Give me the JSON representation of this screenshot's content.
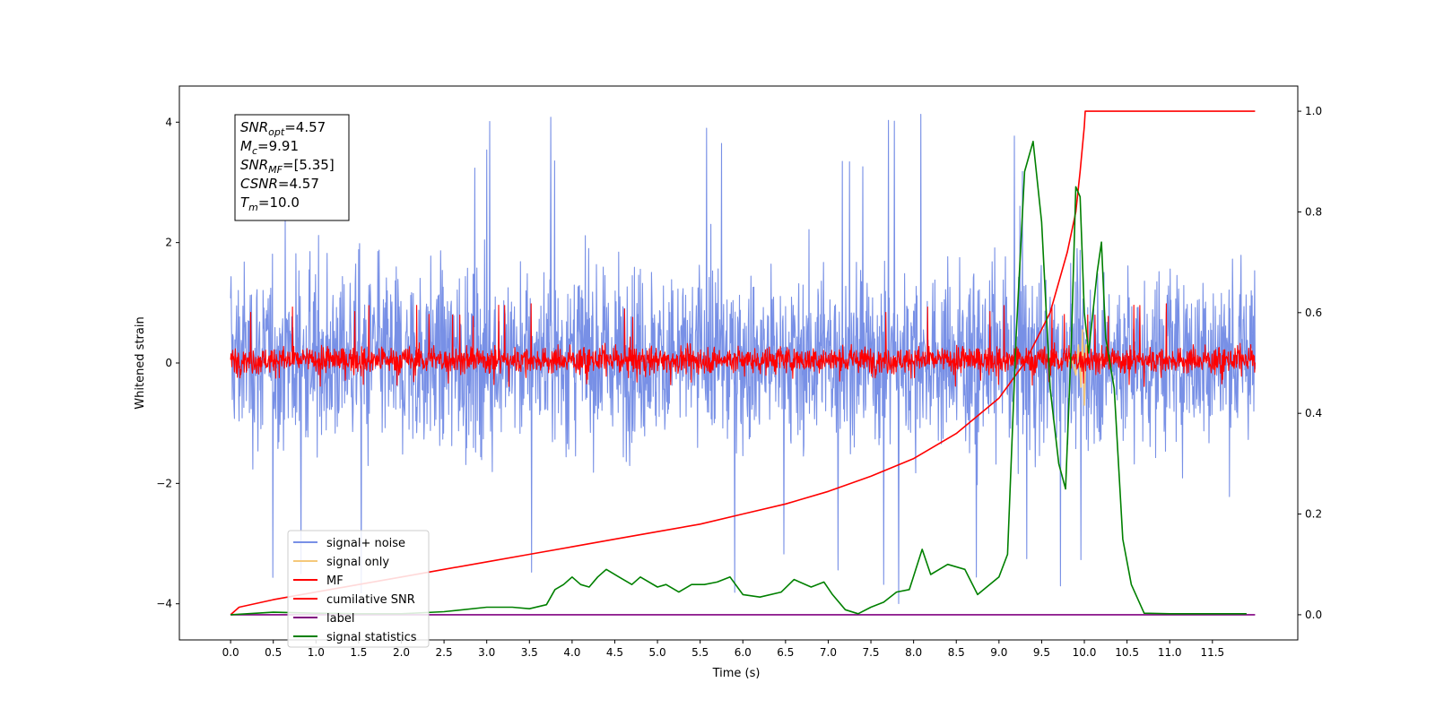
{
  "chart_data": {
    "type": "line",
    "xlabel": "Time (s)",
    "ylabel_left": "Whitened strain",
    "ylabel_right": "",
    "xlim": [
      -0.6,
      12.5
    ],
    "ylim_left": [
      -4.6,
      4.6
    ],
    "ylim_right": [
      -0.05,
      1.05
    ],
    "x_ticks": [
      "0.0",
      "0.5",
      "1.0",
      "1.5",
      "2.0",
      "2.5",
      "3.0",
      "3.5",
      "4.0",
      "4.5",
      "5.0",
      "5.5",
      "6.0",
      "6.5",
      "7.0",
      "7.5",
      "8.0",
      "8.5",
      "9.0",
      "9.5",
      "10.0",
      "10.5",
      "11.0",
      "11.5"
    ],
    "y_ticks_left": [
      "4",
      "2",
      "0",
      "−2",
      "−4"
    ],
    "y_ticks_right": [
      "1.0",
      "0.8",
      "0.6",
      "0.4",
      "0.2",
      "0.0"
    ],
    "grid": false,
    "legend_placement": "lower-left",
    "legend": [
      {
        "label": "signal+ noise",
        "color": "#7890e6"
      },
      {
        "label": "signal only",
        "color": "#f5c87a"
      },
      {
        "label": "MF",
        "color": "#ff0000"
      },
      {
        "label": "cumilative SNR",
        "color": "#ff0000"
      },
      {
        "label": "label",
        "color": "#800080"
      },
      {
        "label": "signal statistics",
        "color": "#008000"
      }
    ],
    "annotation_box": [
      {
        "sym": "SNR",
        "sub": "opt",
        "value": "=4.57"
      },
      {
        "sym": "M",
        "sub": "c",
        "value": "=9.91"
      },
      {
        "sym": "SNR",
        "sub": "MF",
        "value": "=[5.35]"
      },
      {
        "sym": "CSNR",
        "sub": "",
        "value": "=4.57"
      },
      {
        "sym": "T",
        "sub": "m",
        "value": "=10.0"
      }
    ],
    "series": [
      {
        "name": "signal+ noise",
        "axis": "left",
        "color": "#7890e6",
        "note_style": "dense noise",
        "x_range": [
          0.0,
          12.0
        ],
        "typical_band": [
          -2.2,
          2.4
        ],
        "extremes": [
          -4.1,
          4.2
        ]
      },
      {
        "name": "signal only",
        "axis": "left",
        "color": "#f5c87a",
        "x": [
          9.8,
          9.85,
          9.9,
          9.93,
          9.96,
          9.98,
          10.0,
          10.02,
          10.05
        ],
        "y": [
          0.0,
          0.1,
          -0.2,
          0.3,
          -0.4,
          0.55,
          -0.7,
          0.3,
          0.0
        ]
      },
      {
        "name": "MF",
        "axis": "left",
        "color": "#ff0000",
        "note_style": "dense noise",
        "x_range": [
          0.0,
          12.0
        ],
        "typical_band": [
          -0.3,
          0.4
        ],
        "extremes": [
          -0.4,
          1.0
        ]
      },
      {
        "name": "cumilative SNR",
        "axis": "right",
        "color": "#ff0000",
        "x": [
          0.0,
          0.1,
          0.5,
          1.0,
          1.5,
          2.0,
          2.5,
          3.0,
          3.5,
          4.0,
          4.5,
          5.0,
          5.5,
          6.0,
          6.5,
          7.0,
          7.5,
          8.0,
          8.5,
          9.0,
          9.3,
          9.6,
          9.8,
          9.9,
          9.95,
          10.0,
          10.01,
          11.0,
          12.0
        ],
        "y": [
          0.0,
          0.015,
          0.03,
          0.045,
          0.06,
          0.075,
          0.09,
          0.105,
          0.12,
          0.135,
          0.15,
          0.165,
          0.18,
          0.2,
          0.22,
          0.245,
          0.275,
          0.31,
          0.36,
          0.43,
          0.5,
          0.6,
          0.72,
          0.8,
          0.88,
          0.97,
          1.0,
          1.0,
          1.0
        ]
      },
      {
        "name": "label",
        "axis": "right",
        "color": "#800080",
        "x": [
          0.0,
          12.0
        ],
        "y": [
          0.0,
          0.0
        ]
      },
      {
        "name": "signal statistics",
        "axis": "right",
        "color": "#008000",
        "x": [
          0.0,
          0.5,
          1.0,
          1.5,
          2.0,
          2.5,
          3.0,
          3.3,
          3.5,
          3.7,
          3.8,
          3.9,
          4.0,
          4.1,
          4.2,
          4.3,
          4.4,
          4.55,
          4.7,
          4.8,
          5.0,
          5.1,
          5.25,
          5.4,
          5.55,
          5.7,
          5.85,
          6.0,
          6.2,
          6.45,
          6.6,
          6.8,
          6.95,
          7.05,
          7.2,
          7.35,
          7.5,
          7.65,
          7.8,
          7.95,
          8.1,
          8.2,
          8.4,
          8.6,
          8.75,
          9.0,
          9.1,
          9.2,
          9.3,
          9.4,
          9.5,
          9.6,
          9.7,
          9.78,
          9.85,
          9.9,
          9.95,
          10.0,
          10.05,
          10.15,
          10.2,
          10.25,
          10.35,
          10.45,
          10.55,
          10.7,
          11.0,
          11.5,
          11.9
        ],
        "y": [
          0.0,
          0.005,
          0.003,
          0.002,
          0.002,
          0.006,
          0.015,
          0.015,
          0.012,
          0.02,
          0.05,
          0.06,
          0.075,
          0.06,
          0.055,
          0.075,
          0.09,
          0.075,
          0.06,
          0.075,
          0.055,
          0.06,
          0.045,
          0.06,
          0.06,
          0.065,
          0.075,
          0.04,
          0.035,
          0.045,
          0.07,
          0.055,
          0.065,
          0.04,
          0.01,
          0.002,
          0.015,
          0.025,
          0.045,
          0.05,
          0.13,
          0.08,
          0.1,
          0.09,
          0.04,
          0.075,
          0.12,
          0.55,
          0.88,
          0.94,
          0.78,
          0.45,
          0.3,
          0.25,
          0.55,
          0.85,
          0.83,
          0.6,
          0.52,
          0.68,
          0.74,
          0.55,
          0.45,
          0.15,
          0.06,
          0.003,
          0.002,
          0.002,
          0.002
        ]
      }
    ]
  }
}
